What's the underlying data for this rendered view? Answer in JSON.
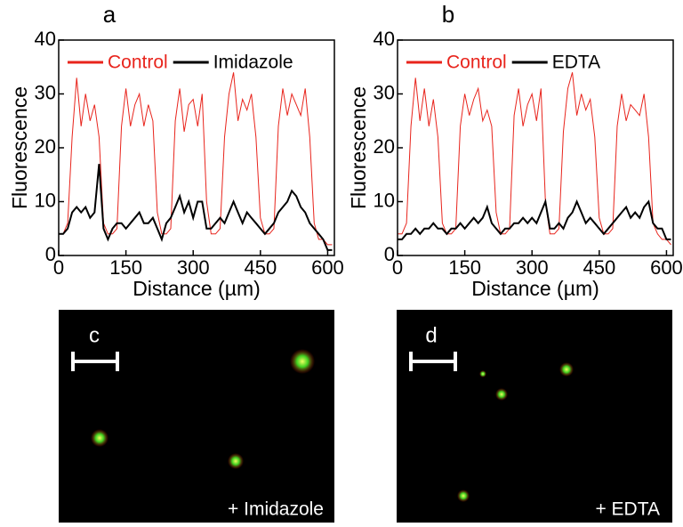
{
  "chart_data": [
    {
      "type": "line",
      "title": "a",
      "x_label": "Distance (µm)",
      "y_label": "Fluorescence",
      "xlim": [
        0,
        615
      ],
      "ylim": [
        0,
        40
      ],
      "xticks": [
        0,
        150,
        300,
        450,
        600
      ],
      "yticks": [
        0,
        10,
        20,
        30,
        40
      ],
      "legend": "top",
      "x": [
        0,
        10,
        20,
        30,
        40,
        50,
        60,
        70,
        80,
        90,
        100,
        110,
        120,
        130,
        140,
        150,
        160,
        170,
        180,
        190,
        200,
        210,
        220,
        230,
        240,
        250,
        260,
        270,
        280,
        290,
        300,
        310,
        320,
        330,
        340,
        350,
        360,
        370,
        380,
        390,
        400,
        410,
        420,
        430,
        440,
        450,
        460,
        470,
        480,
        490,
        500,
        510,
        520,
        530,
        540,
        550,
        560,
        570,
        580,
        590,
        600,
        610
      ],
      "series": [
        {
          "name": "Control",
          "color": "#e8241c",
          "values": [
            4,
            4,
            6,
            22,
            33,
            24,
            30,
            25,
            28,
            22,
            6,
            4,
            4,
            5,
            24,
            31,
            24,
            28,
            30,
            24,
            28,
            25,
            8,
            4,
            4,
            5,
            25,
            31,
            23,
            28,
            29,
            24,
            30,
            10,
            4,
            4,
            5,
            22,
            30,
            34,
            25,
            29,
            27,
            30,
            22,
            7,
            4,
            4,
            5,
            24,
            31,
            26,
            30,
            28,
            26,
            31,
            22,
            6,
            3,
            3,
            2,
            2
          ]
        },
        {
          "name": "Imidazole",
          "color": "#000000",
          "values": [
            4,
            4,
            5,
            8,
            9,
            8,
            9,
            7,
            8,
            17,
            5,
            3,
            5,
            6,
            6,
            5,
            6,
            7,
            8,
            6,
            6,
            7,
            5,
            3,
            6,
            7,
            9,
            11,
            8,
            10,
            7,
            10,
            10,
            5,
            5,
            6,
            7,
            6,
            8,
            10,
            8,
            6,
            8,
            7,
            6,
            5,
            4,
            5,
            6,
            8,
            9,
            10,
            12,
            11,
            9,
            8,
            6,
            5,
            4,
            3,
            1,
            1
          ]
        }
      ]
    },
    {
      "type": "line",
      "title": "b",
      "x_label": "Distance (µm)",
      "y_label": "Fluorescence",
      "xlim": [
        0,
        615
      ],
      "ylim": [
        0,
        40
      ],
      "xticks": [
        0,
        150,
        300,
        450,
        600
      ],
      "yticks": [
        0,
        10,
        20,
        30,
        40
      ],
      "legend": "top",
      "x": [
        0,
        10,
        20,
        30,
        40,
        50,
        60,
        70,
        80,
        90,
        100,
        110,
        120,
        130,
        140,
        150,
        160,
        170,
        180,
        190,
        200,
        210,
        220,
        230,
        240,
        250,
        260,
        270,
        280,
        290,
        300,
        310,
        320,
        330,
        340,
        350,
        360,
        370,
        380,
        390,
        400,
        410,
        420,
        430,
        440,
        450,
        460,
        470,
        480,
        490,
        500,
        510,
        520,
        530,
        540,
        550,
        560,
        570,
        580,
        590,
        600,
        610
      ],
      "series": [
        {
          "name": "Control",
          "color": "#e8241c",
          "values": [
            4,
            4,
            6,
            24,
            33,
            25,
            31,
            24,
            29,
            22,
            6,
            4,
            4,
            5,
            24,
            30,
            26,
            29,
            31,
            25,
            27,
            24,
            8,
            4,
            4,
            5,
            26,
            31,
            24,
            28,
            30,
            25,
            31,
            10,
            4,
            4,
            5,
            23,
            31,
            34,
            26,
            30,
            27,
            29,
            22,
            7,
            4,
            4,
            5,
            24,
            30,
            25,
            28,
            27,
            26,
            30,
            22,
            6,
            4,
            3,
            3,
            2
          ]
        },
        {
          "name": "EDTA",
          "color": "#000000",
          "values": [
            3,
            3,
            4,
            4,
            5,
            4,
            5,
            5,
            6,
            5,
            5,
            4,
            5,
            5,
            6,
            5,
            6,
            7,
            6,
            7,
            9,
            6,
            5,
            4,
            5,
            5,
            6,
            6,
            7,
            6,
            7,
            6,
            8,
            10,
            5,
            5,
            6,
            5,
            7,
            8,
            10,
            8,
            6,
            7,
            6,
            5,
            4,
            5,
            6,
            7,
            8,
            9,
            7,
            8,
            7,
            9,
            10,
            6,
            5,
            5,
            3,
            3
          ]
        }
      ]
    }
  ],
  "images": [
    {
      "label": "c",
      "caption": "+ Imidazole"
    },
    {
      "label": "d",
      "caption": "+ EDTA"
    }
  ]
}
